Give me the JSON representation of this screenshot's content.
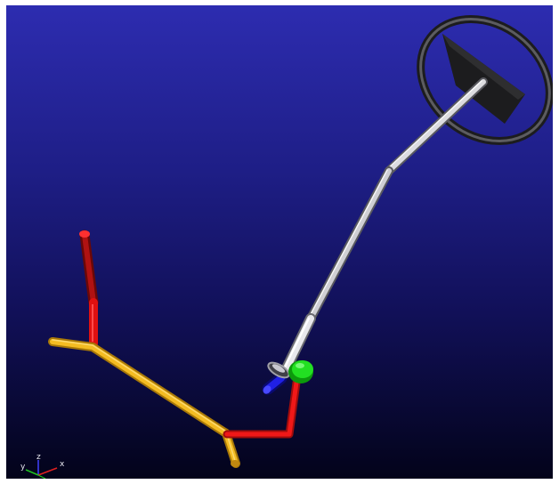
{
  "viewer": {
    "background_top": "#2d2cb0",
    "background_bottom": "#03031a"
  },
  "model": {
    "parts": [
      {
        "name": "steering-wheel",
        "color": "#3a3a3c"
      },
      {
        "name": "steering-column-upper",
        "color": "#c8c8cc"
      },
      {
        "name": "steering-column-lower",
        "color": "#c8c8cc"
      },
      {
        "name": "universal-joint",
        "color": "#8a8a90"
      },
      {
        "name": "pinion-cylinder",
        "color": "#1010d0"
      },
      {
        "name": "pinion-gear",
        "color": "#19d619"
      },
      {
        "name": "pitman-links",
        "color": "#e01010"
      },
      {
        "name": "tie-rod",
        "color": "#f0b81c"
      }
    ]
  },
  "triad": {
    "x_label": "x",
    "y_label": "y",
    "z_label": "z",
    "x_color": "#e02020",
    "y_color": "#20c020",
    "z_color": "#4040ff"
  }
}
